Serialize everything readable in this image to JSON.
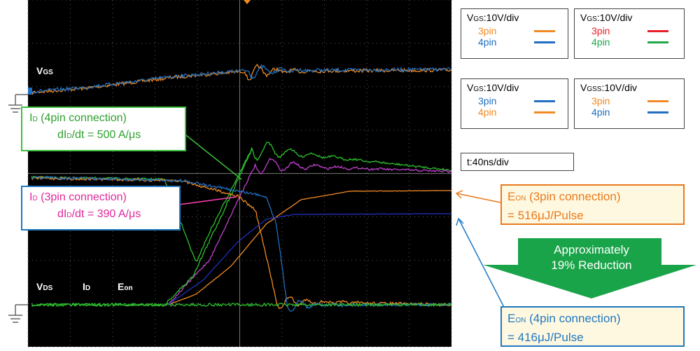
{
  "scope": {
    "labels": {
      "vgs": {
        "main": "V",
        "sub": "GS"
      },
      "vds": {
        "main": "V",
        "sub": "DS"
      },
      "id": {
        "main": "I",
        "sub": "D"
      },
      "eon": {
        "main": "E",
        "sub": "on"
      }
    }
  },
  "callouts": [
    {
      "line1": {
        "main": "I",
        "sub": "D",
        "rest": " (4pin connection)"
      },
      "line2": {
        "pre": "dI",
        "sub": "D",
        "rest": "/dt = 500 A/μs"
      }
    },
    {
      "line1": {
        "main": "I",
        "sub": "D",
        "rest": " (3pin connection)"
      },
      "line2": {
        "pre": "dI",
        "sub": "D",
        "rest": "/dt = 390 A/μs"
      }
    }
  ],
  "legends": [
    {
      "title": {
        "main": "V",
        "sub": "GS",
        "rest": ":10V/div"
      },
      "items": [
        {
          "label": "3pin",
          "color": "#f08a24"
        },
        {
          "label": "4pin",
          "color": "#1f6fc0"
        }
      ]
    },
    {
      "title": {
        "main": "V",
        "sub": "GS",
        "rest": ":10V/div"
      },
      "items": [
        {
          "label": "3pin",
          "color": "#e8202a"
        },
        {
          "label": "4pin",
          "color": "#1fa84a"
        }
      ]
    },
    {
      "title": {
        "main": "V",
        "sub": "GS",
        "rest": ":10V/div"
      },
      "items": [
        {
          "label": "3pin",
          "color": "#1f6fc0"
        },
        {
          "label": "4pin",
          "color": "#f08a24"
        }
      ]
    },
    {
      "title": {
        "main": "V",
        "sub": "GSS",
        "rest": ":10V/div"
      },
      "items": [
        {
          "label": "3pin",
          "color": "#f08a24"
        },
        {
          "label": "4pin",
          "color": "#1f6fc0"
        }
      ]
    }
  ],
  "timebase": "t:40ns/div",
  "energy": [
    {
      "line1": {
        "main": "E",
        "sub": "ON",
        "rest": " (3pin connection)"
      },
      "line2": "= 516μJ/Pulse"
    },
    {
      "line1": {
        "main": "E",
        "sub": "ON",
        "rest": " (4pin connection)"
      },
      "line2": "= 416μJ/Pulse"
    }
  ],
  "arrow": {
    "line1": "Approximately",
    "line2": "19% Reduction"
  }
}
